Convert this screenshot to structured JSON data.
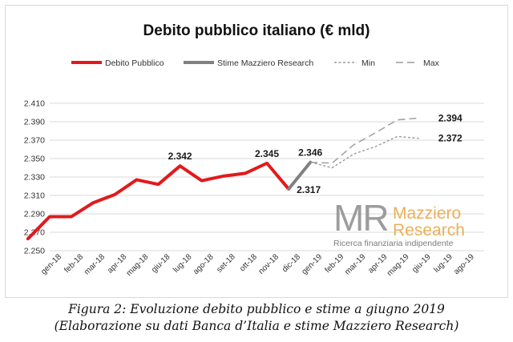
{
  "chart_data": {
    "type": "line",
    "title": "Debito pubblico italiano (€ mld)",
    "categories": [
      "gen-18",
      "feb-18",
      "mar-18",
      "apr-18",
      "mag-18",
      "giu-18",
      "lug-18",
      "ago-18",
      "set-18",
      "ott-18",
      "nov-18",
      "dic-18",
      "gen-19",
      "feb-19",
      "mar-19",
      "apr-19",
      "mag-19",
      "giu-19",
      "lug-19",
      "ago-19"
    ],
    "ylim": [
      2.25,
      2.41
    ],
    "yticks": [
      "2.250",
      "2.270",
      "2.290",
      "2.310",
      "2.330",
      "2.350",
      "2.370",
      "2.390",
      "2.410"
    ],
    "grid": true,
    "legend_position": "top",
    "series": [
      {
        "name": "Debito Pubblico",
        "color": "#e3191c",
        "style": "solid",
        "x": [
          "dic-17",
          "gen-18",
          "feb-18",
          "mar-18",
          "apr-18",
          "mag-18",
          "giu-18",
          "lug-18",
          "ago-18",
          "set-18",
          "ott-18",
          "nov-18",
          "dic-18"
        ],
        "values": [
          2.263,
          2.287,
          2.287,
          2.302,
          2.311,
          2.327,
          2.322,
          2.342,
          2.326,
          2.331,
          2.334,
          2.345,
          2.317
        ]
      },
      {
        "name": "Stime Mazziero Research",
        "color": "#808080",
        "style": "solid",
        "x": [
          "dic-18",
          "gen-19"
        ],
        "values": [
          2.317,
          2.346
        ]
      },
      {
        "name": "Min",
        "color": "#9a9a9a",
        "style": "dotted",
        "x": [
          "gen-19",
          "feb-19",
          "mar-19",
          "apr-19",
          "mag-19",
          "giu-19"
        ],
        "values": [
          2.346,
          2.34,
          2.355,
          2.363,
          2.374,
          2.372
        ]
      },
      {
        "name": "Max",
        "color": "#9a9a9a",
        "style": "dashed",
        "x": [
          "gen-19",
          "feb-19",
          "mar-19",
          "apr-19",
          "mag-19",
          "giu-19"
        ],
        "values": [
          2.346,
          2.345,
          2.365,
          2.378,
          2.392,
          2.394
        ]
      }
    ],
    "annotations": [
      {
        "text": "2.342",
        "x": "lug-18",
        "y": 2.342
      },
      {
        "text": "2.345",
        "x": "nov-18",
        "y": 2.345
      },
      {
        "text": "2.317",
        "x": "dic-18",
        "y": 2.317
      },
      {
        "text": "2.346",
        "x": "gen-19",
        "y": 2.346
      },
      {
        "text": "2.394",
        "x": "giu-19",
        "y": 2.394
      },
      {
        "text": "2.372",
        "x": "giu-19",
        "y": 2.372
      }
    ]
  },
  "watermark": {
    "monogram": "MR",
    "name_line1": "Mazziero",
    "name_line2": "Research",
    "tagline": "Ricerca finanziaria indipendente"
  },
  "caption": {
    "line1": "Figura 2: Evoluzione debito pubblico e stime a giugno 2019",
    "line2": "(Elaborazione su dati Banca d’Italia e stime Mazziero Research)"
  }
}
